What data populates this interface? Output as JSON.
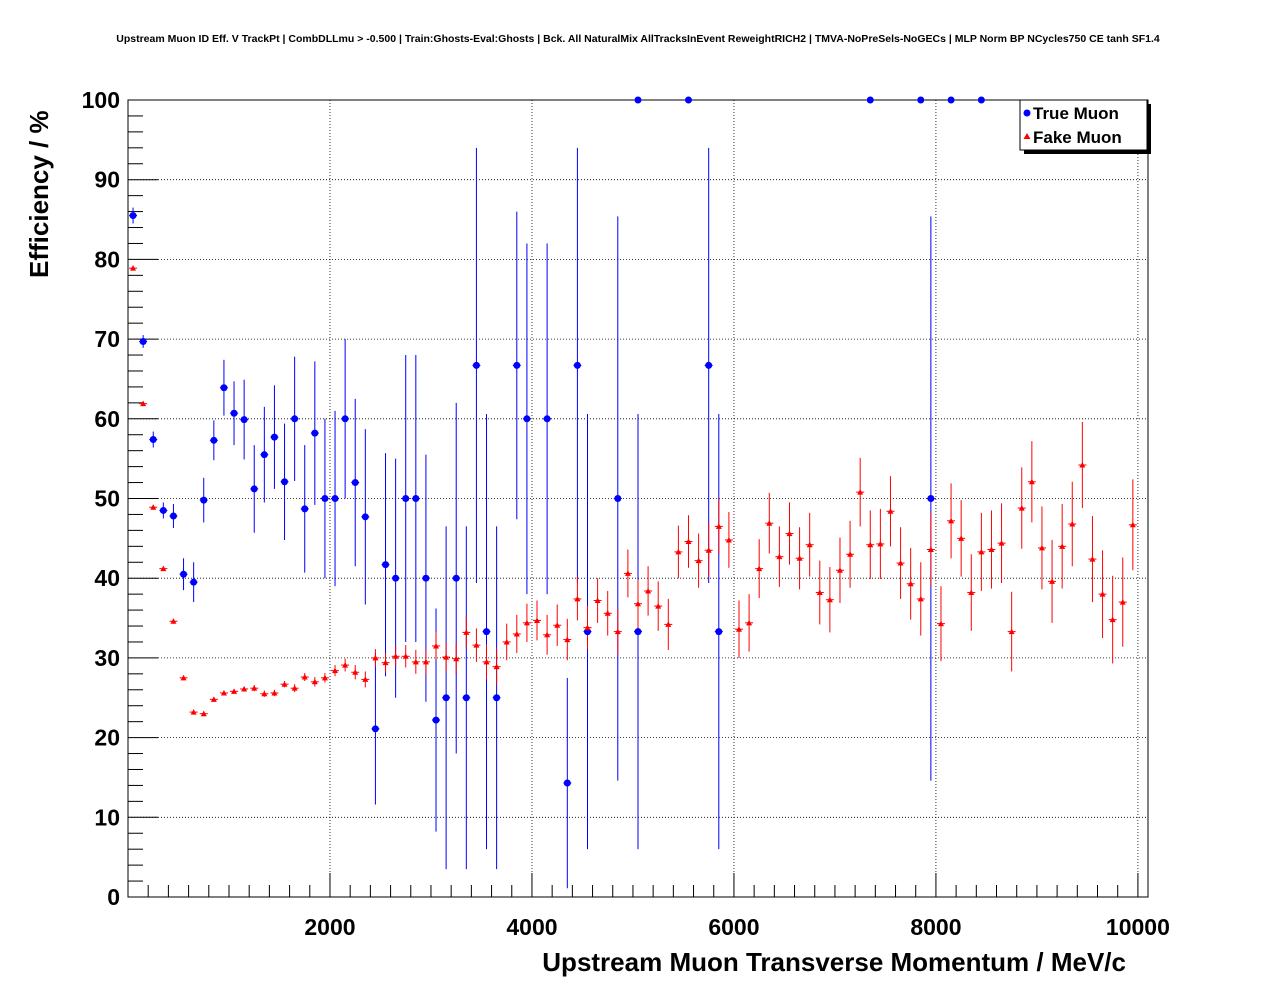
{
  "chart_data": {
    "type": "scatter",
    "title": "Upstream Muon ID Eff. V TrackPt | CombDLLmu > -0.500 | Train:Ghosts-Eval:Ghosts | Bck. All NaturalMix AllTracksInEvent ReweightRICH2 | TMVA-NoPreSels-NoGECs | MLP Norm BP NCycles750 CE tanh SF1.4",
    "xlabel": "Upstream Muon Transverse Momentum / MeV/c",
    "ylabel": "Efficiency / %",
    "xlim": [
      0,
      10100
    ],
    "ylim": [
      0,
      100
    ],
    "x_ticks": [
      2000,
      4000,
      6000,
      8000,
      10000
    ],
    "y_ticks": [
      0,
      10,
      20,
      30,
      40,
      50,
      60,
      70,
      80,
      90,
      100
    ],
    "grid": true,
    "legend_position": "top-right",
    "series": [
      {
        "name": "True Muon",
        "color": "#0000ff",
        "marker": "circle",
        "points": [
          [
            50,
            85.5,
            1.0
          ],
          [
            150,
            69.7,
            0.8
          ],
          [
            250,
            57.4,
            1.0
          ],
          [
            350,
            48.5,
            1.0
          ],
          [
            450,
            47.8,
            1.5
          ],
          [
            550,
            40.5,
            2.0
          ],
          [
            650,
            39.5,
            2.5
          ],
          [
            750,
            49.8,
            2.8
          ],
          [
            850,
            57.3,
            2.5
          ],
          [
            950,
            63.9,
            3.5
          ],
          [
            1050,
            60.7,
            4.0
          ],
          [
            1150,
            59.9,
            5.0
          ],
          [
            1250,
            51.2,
            5.5
          ],
          [
            1350,
            55.5,
            6.0
          ],
          [
            1450,
            57.7,
            6.5
          ],
          [
            1550,
            52.1,
            7.3
          ],
          [
            1650,
            60.0,
            7.8
          ],
          [
            1750,
            48.7,
            8.0
          ],
          [
            1850,
            58.2,
            9.0
          ],
          [
            1950,
            50.0,
            10.0
          ],
          [
            2050,
            50.0,
            11.0
          ],
          [
            2150,
            60.0,
            10.0
          ],
          [
            2250,
            52.0,
            10.5
          ],
          [
            2350,
            47.7,
            11.0
          ],
          [
            2450,
            21.1,
            9.5
          ],
          [
            2550,
            41.7,
            14.0
          ],
          [
            2650,
            40.0,
            15.0
          ],
          [
            2750,
            50.0,
            18.0
          ],
          [
            2850,
            50.0,
            18.0
          ],
          [
            2950,
            40.0,
            15.5
          ],
          [
            3050,
            22.2,
            14.0
          ],
          [
            3150,
            25.0,
            21.5
          ],
          [
            3250,
            40.0,
            22.0
          ],
          [
            3350,
            25.0,
            21.5
          ],
          [
            3450,
            66.7,
            27.3
          ],
          [
            3550,
            33.3,
            27.3
          ],
          [
            3650,
            25.0,
            21.5
          ],
          [
            3850,
            66.7,
            19.3
          ],
          [
            3950,
            60.0,
            22.0
          ],
          [
            4150,
            60.0,
            22.0
          ],
          [
            4350,
            14.3,
            13.2
          ],
          [
            4450,
            66.7,
            27.3
          ],
          [
            4550,
            33.3,
            27.3
          ],
          [
            4850,
            50.0,
            35.4
          ],
          [
            5050,
            100.0,
            0.0
          ],
          [
            5050,
            33.3,
            27.3
          ],
          [
            5550,
            100.0,
            0.0
          ],
          [
            5750,
            66.7,
            27.3
          ],
          [
            5850,
            33.3,
            27.3
          ],
          [
            7350,
            100.0,
            0.0
          ],
          [
            7850,
            100.0,
            0.0
          ],
          [
            7950,
            50.0,
            35.4
          ],
          [
            8150,
            100.0,
            0.0
          ],
          [
            8450,
            100.0,
            0.0
          ]
        ]
      },
      {
        "name": "Fake Muon",
        "color": "#ff0000",
        "marker": "triangle",
        "points": [
          [
            50,
            78.9,
            0.3
          ],
          [
            150,
            61.9,
            0.3
          ],
          [
            250,
            48.9,
            0.3
          ],
          [
            350,
            41.2,
            0.3
          ],
          [
            450,
            34.6,
            0.3
          ],
          [
            550,
            27.5,
            0.3
          ],
          [
            650,
            23.2,
            0.3
          ],
          [
            750,
            23.0,
            0.3
          ],
          [
            850,
            24.8,
            0.3
          ],
          [
            950,
            25.6,
            0.3
          ],
          [
            1050,
            25.8,
            0.3
          ],
          [
            1150,
            26.1,
            0.3
          ],
          [
            1250,
            26.2,
            0.4
          ],
          [
            1350,
            25.5,
            0.4
          ],
          [
            1450,
            25.6,
            0.4
          ],
          [
            1550,
            26.7,
            0.4
          ],
          [
            1650,
            26.2,
            0.5
          ],
          [
            1750,
            27.6,
            0.5
          ],
          [
            1850,
            27.0,
            0.6
          ],
          [
            1950,
            27.5,
            0.6
          ],
          [
            2050,
            28.4,
            0.7
          ],
          [
            2150,
            29.1,
            0.8
          ],
          [
            2250,
            28.2,
            0.9
          ],
          [
            2350,
            27.3,
            1.0
          ],
          [
            2450,
            30.0,
            1.1
          ],
          [
            2550,
            29.4,
            1.2
          ],
          [
            2650,
            30.2,
            1.3
          ],
          [
            2750,
            30.2,
            1.4
          ],
          [
            2850,
            29.5,
            1.5
          ],
          [
            2950,
            29.5,
            1.6
          ],
          [
            3050,
            31.5,
            1.7
          ],
          [
            3150,
            30.1,
            1.8
          ],
          [
            3250,
            29.9,
            1.9
          ],
          [
            3350,
            33.2,
            2.0
          ],
          [
            3450,
            31.6,
            2.1
          ],
          [
            3550,
            29.5,
            2.2
          ],
          [
            3650,
            28.9,
            2.3
          ],
          [
            3750,
            32.0,
            2.3
          ],
          [
            3850,
            33.0,
            2.4
          ],
          [
            3950,
            34.4,
            2.4
          ],
          [
            4050,
            34.7,
            2.5
          ],
          [
            4150,
            32.9,
            2.5
          ],
          [
            4250,
            34.1,
            2.6
          ],
          [
            4350,
            32.3,
            2.6
          ],
          [
            4450,
            37.4,
            2.7
          ],
          [
            4550,
            33.8,
            2.7
          ],
          [
            4650,
            37.2,
            2.8
          ],
          [
            4750,
            35.6,
            2.8
          ],
          [
            4850,
            33.3,
            2.9
          ],
          [
            4950,
            40.6,
            3.0
          ],
          [
            5050,
            36.8,
            3.0
          ],
          [
            5150,
            38.4,
            3.1
          ],
          [
            5250,
            36.5,
            3.1
          ],
          [
            5350,
            34.2,
            3.2
          ],
          [
            5450,
            43.3,
            3.3
          ],
          [
            5550,
            44.6,
            3.3
          ],
          [
            5650,
            42.2,
            3.4
          ],
          [
            5750,
            43.5,
            3.4
          ],
          [
            5850,
            46.5,
            3.5
          ],
          [
            5950,
            44.8,
            3.5
          ],
          [
            6050,
            33.6,
            3.6
          ],
          [
            6150,
            34.4,
            3.6
          ],
          [
            6250,
            41.2,
            3.7
          ],
          [
            6350,
            46.9,
            3.8
          ],
          [
            6450,
            42.7,
            3.8
          ],
          [
            6550,
            45.6,
            3.9
          ],
          [
            6650,
            42.5,
            3.9
          ],
          [
            6750,
            44.2,
            4.0
          ],
          [
            6850,
            38.2,
            4.0
          ],
          [
            6950,
            37.3,
            4.1
          ],
          [
            7050,
            41.0,
            4.1
          ],
          [
            7150,
            43.0,
            4.2
          ],
          [
            7250,
            50.8,
            4.3
          ],
          [
            7350,
            44.2,
            4.3
          ],
          [
            7450,
            44.3,
            4.4
          ],
          [
            7550,
            48.4,
            4.4
          ],
          [
            7650,
            41.9,
            4.5
          ],
          [
            7750,
            39.3,
            4.5
          ],
          [
            7850,
            37.4,
            4.6
          ],
          [
            7950,
            43.6,
            4.6
          ],
          [
            8050,
            34.3,
            4.7
          ],
          [
            8150,
            47.2,
            4.7
          ],
          [
            8250,
            45.0,
            4.8
          ],
          [
            8350,
            38.2,
            4.8
          ],
          [
            8450,
            43.3,
            4.9
          ],
          [
            8550,
            43.6,
            4.9
          ],
          [
            8650,
            44.4,
            5.0
          ],
          [
            8750,
            33.3,
            5.0
          ],
          [
            8850,
            48.8,
            5.1
          ],
          [
            8950,
            52.1,
            5.1
          ],
          [
            9050,
            43.8,
            5.2
          ],
          [
            9150,
            39.6,
            5.2
          ],
          [
            9250,
            44.0,
            5.3
          ],
          [
            9350,
            46.8,
            5.3
          ],
          [
            9450,
            54.2,
            5.4
          ],
          [
            9550,
            42.4,
            5.4
          ],
          [
            9650,
            38.0,
            5.5
          ],
          [
            9750,
            34.8,
            5.5
          ],
          [
            9850,
            37.0,
            5.6
          ],
          [
            9950,
            46.7,
            5.7
          ]
        ]
      }
    ]
  }
}
